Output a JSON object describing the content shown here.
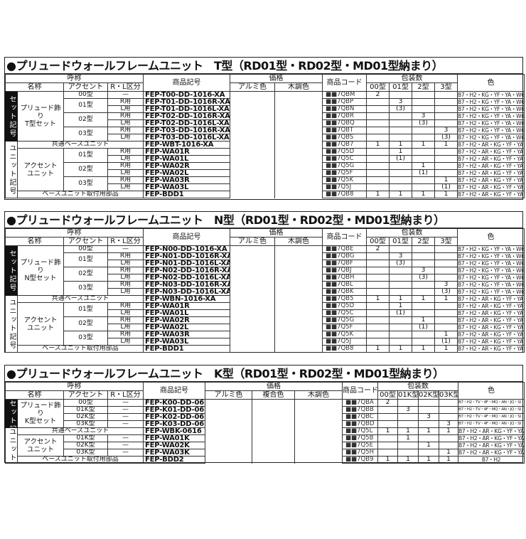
{
  "sections": [
    {
      "title": "●プリュードウォールフレームユニット　T型（RD01型・RD02型・MD01型納まり）",
      "header": {
        "yobi": "呼称",
        "name": "名称",
        "accent": "アクセント",
        "rl": "R・L区分",
        "sku": "商品記号",
        "price": "価格",
        "price_cols": [
          "アルミ色",
          "木調色"
        ],
        "code": "商品コード",
        "pack": "包装数",
        "pack_cols": [
          "00型",
          "01型",
          "2型",
          "3型"
        ],
        "color": "色"
      },
      "groups": [
        {
          "label": "セット記号",
          "dark": true,
          "rows": [
            {
              "name": "プリュード飾り\nT型セット",
              "accent": "00型",
              "rl": "—",
              "sku": "FEP-T00-DD-1016-XA",
              "code": "■■7QBM",
              "pack": [
                "2",
                "",
                "",
                ""
              ],
              "color": "B7・H2・KG・YF・YA・W6"
            },
            {
              "name": "プリュード飾り\nT型セット",
              "accent": "01型",
              "rl": "R用",
              "sku": "FEP-T01-DD-1016R-XA",
              "code": "■■7QBP",
              "pack": [
                "",
                "3",
                "",
                ""
              ],
              "color": "B7・H2・KG・YF・YA・W6"
            },
            {
              "name": "プリュード飾り\nT型セット",
              "accent": "01型",
              "rl": "L用",
              "sku": "FEP-T01-DD-1016L-XA",
              "code": "■■7QBN",
              "pack": [
                "",
                "(3)",
                "",
                ""
              ],
              "color": "B7・H2・KG・YF・YA・W6"
            },
            {
              "name": "プリュード飾り\nT型セット",
              "accent": "02型",
              "rl": "R用",
              "sku": "FEP-T02-DD-1016R-XA",
              "code": "■■7QBR",
              "pack": [
                "",
                "",
                "3",
                ""
              ],
              "color": "B7・H2・KG・YF・YA・W6"
            },
            {
              "name": "プリュード飾り\nT型セット",
              "accent": "02型",
              "rl": "L用",
              "sku": "FEP-T02-DD-1016L-XA",
              "code": "■■7QBQ",
              "pack": [
                "",
                "",
                "(3)",
                ""
              ],
              "color": "B7・H2・KG・YF・YA・W6"
            },
            {
              "name": "プリュード飾り\nT型セット",
              "accent": "03型",
              "rl": "R用",
              "sku": "FEP-T03-DD-1016R-XA",
              "code": "■■7QBT",
              "pack": [
                "",
                "",
                "",
                "3"
              ],
              "color": "B7・H2・KG・YF・YA・W6"
            },
            {
              "name": "プリュード飾り\nT型セット",
              "accent": "03型",
              "rl": "L用",
              "sku": "FEP-T03-DD-1016L-XA",
              "code": "■■7QBS",
              "pack": [
                "",
                "",
                "",
                "(3)"
              ],
              "color": "B7・H2・KG・YF・YA・W6"
            }
          ]
        },
        {
          "label": "ユニット記号",
          "dark": false,
          "rows": [
            {
              "label": "共通ベースユニット",
              "sku": "FEP-WBT-1016-XA",
              "code": "■■7QB7",
              "pack": [
                "1",
                "1",
                "1",
                "1"
              ],
              "color": "B7・H2・AR・KG・YF・YA・W6"
            },
            {
              "name": "アクセント\nユニット",
              "accent": "01型",
              "rl": "R用",
              "sku": "FEP-WA01R",
              "code": "■■7Q5D",
              "pack": [
                "",
                "1",
                "",
                ""
              ],
              "color": "B7・H2・AR・KG・YF・YA・W6"
            },
            {
              "name": "アクセント\nユニット",
              "accent": "01型",
              "rl": "L用",
              "sku": "FEP-WA01L",
              "code": "■■7Q5C",
              "pack": [
                "",
                "(1)",
                "",
                ""
              ],
              "color": "B7・H2・AR・KG・YF・YA・W6"
            },
            {
              "name": "アクセント\nユニット",
              "accent": "02型",
              "rl": "R用",
              "sku": "FEP-WA02R",
              "code": "■■7Q5G",
              "pack": [
                "",
                "",
                "1",
                ""
              ],
              "color": "B7・H2・AR・KG・YF・YA・W6"
            },
            {
              "name": "アクセント\nユニット",
              "accent": "02型",
              "rl": "L用",
              "sku": "FEP-WA02L",
              "code": "■■7Q5F",
              "pack": [
                "",
                "",
                "(1)",
                ""
              ],
              "color": "B7・H2・AR・KG・YF・YA・W6"
            },
            {
              "name": "アクセント\nユニット",
              "accent": "03型",
              "rl": "R用",
              "sku": "FEP-WA03R",
              "code": "■■7Q5K",
              "pack": [
                "",
                "",
                "",
                "1"
              ],
              "color": "B7・H2・AR・KG・YF・YA・W6"
            },
            {
              "name": "アクセント\nユニット",
              "accent": "03型",
              "rl": "L用",
              "sku": "FEP-WA03L",
              "code": "■■7Q5J",
              "pack": [
                "",
                "",
                "",
                "(1)"
              ],
              "color": "B7・H2・AR・KG・YF・YA・W6"
            },
            {
              "label": "ベースユニット取付用部品",
              "sku": "FEP-BDD1",
              "code": "■■7QB8",
              "pack": [
                "1",
                "1",
                "1",
                "1"
              ],
              "color": "B7・H2・AR・KG・YF・YA・W6"
            }
          ]
        }
      ]
    },
    {
      "title": "●プリュードウォールフレームユニット　N型（RD01型・RD02型・MD01型納まり）",
      "header": {
        "yobi": "呼称",
        "name": "名称",
        "accent": "アクセント",
        "rl": "R・L区分",
        "sku": "商品記号",
        "price": "価格",
        "price_cols": [
          "アルミ色",
          "木調色"
        ],
        "code": "商品コード",
        "pack": "包装数",
        "pack_cols": [
          "00型",
          "01型",
          "2型",
          "3型"
        ],
        "color": "色"
      },
      "groups": [
        {
          "label": "セット記号",
          "dark": true,
          "rows": [
            {
              "name": "プリュード飾り\nN型セット",
              "accent": "00型",
              "rl": "—",
              "sku": "FEP-N00-DD-1016-XA",
              "code": "■■7QBE",
              "pack": [
                "2",
                "",
                "",
                ""
              ],
              "color": "B7・H2・KG・YF・YA・W6"
            },
            {
              "name": "プリュード飾り\nN型セット",
              "accent": "01型",
              "rl": "R用",
              "sku": "FEP-N01-DD-1016R-XA",
              "code": "■■7QBG",
              "pack": [
                "",
                "3",
                "",
                ""
              ],
              "color": "B7・H2・KG・YF・YA・W6"
            },
            {
              "name": "プリュード飾り\nN型セット",
              "accent": "01型",
              "rl": "L用",
              "sku": "FEP-N01-DD-1016L-XA",
              "code": "■■7QBF",
              "pack": [
                "",
                "(3)",
                "",
                ""
              ],
              "color": "B7・H2・KG・YF・YA・W6"
            },
            {
              "name": "プリュード飾り\nN型セット",
              "accent": "02型",
              "rl": "R用",
              "sku": "FEP-N02-DD-1016R-XA",
              "code": "■■7QBJ",
              "pack": [
                "",
                "",
                "3",
                ""
              ],
              "color": "B7・H2・KG・YF・YA・W6"
            },
            {
              "name": "プリュード飾り\nN型セット",
              "accent": "02型",
              "rl": "L用",
              "sku": "FEP-N02-DD-1016L-XA",
              "code": "■■7QBH",
              "pack": [
                "",
                "",
                "(3)",
                ""
              ],
              "color": "B7・H2・KG・YF・YA・W6"
            },
            {
              "name": "プリュード飾り\nN型セット",
              "accent": "03型",
              "rl": "R用",
              "sku": "FEP-N03-DD-1016R-XA",
              "code": "■■7QBL",
              "pack": [
                "",
                "",
                "",
                "3"
              ],
              "color": "B7・H2・KG・YF・YA・W6"
            },
            {
              "name": "プリュード飾り\nN型セット",
              "accent": "03型",
              "rl": "L用",
              "sku": "FEP-N03-DD-1016L-XA",
              "code": "■■7QBK",
              "pack": [
                "",
                "",
                "",
                "(3)"
              ],
              "color": "B7・H2・KG・YF・YA・W6"
            }
          ]
        },
        {
          "label": "ユニット記号",
          "dark": false,
          "rows": [
            {
              "label": "共通ベースユニット",
              "sku": "FEP-WBN-1016-XA",
              "code": "■■7QB5",
              "pack": [
                "1",
                "1",
                "1",
                "1"
              ],
              "color": "B7・H2・AR・KG・YF・YA・W6"
            },
            {
              "name": "アクセント\nユニット",
              "accent": "01型",
              "rl": "R用",
              "sku": "FEP-WA01R",
              "code": "■■7Q5D",
              "pack": [
                "",
                "1",
                "",
                ""
              ],
              "color": "B7・H2・AR・KG・YF・YA・W6"
            },
            {
              "name": "アクセント\nユニット",
              "accent": "01型",
              "rl": "L用",
              "sku": "FEP-WA01L",
              "code": "■■7Q5C",
              "pack": [
                "",
                "(1)",
                "",
                ""
              ],
              "color": "B7・H2・AR・KG・YF・YA・W6"
            },
            {
              "name": "アクセント\nユニット",
              "accent": "02型",
              "rl": "R用",
              "sku": "FEP-WA02R",
              "code": "■■7Q5G",
              "pack": [
                "",
                "",
                "1",
                ""
              ],
              "color": "B7・H2・AR・KG・YF・YA・W6"
            },
            {
              "name": "アクセント\nユニット",
              "accent": "02型",
              "rl": "L用",
              "sku": "FEP-WA02L",
              "code": "■■7Q5F",
              "pack": [
                "",
                "",
                "(1)",
                ""
              ],
              "color": "B7・H2・AR・KG・YF・YA・W6"
            },
            {
              "name": "アクセント\nユニット",
              "accent": "03型",
              "rl": "R用",
              "sku": "FEP-WA03R",
              "code": "■■7Q5K",
              "pack": [
                "",
                "",
                "",
                "1"
              ],
              "color": "B7・H2・AR・KG・YF・YA・W6"
            },
            {
              "name": "アクセント\nユニット",
              "accent": "03型",
              "rl": "L用",
              "sku": "FEP-WA03L",
              "code": "■■7Q5J",
              "pack": [
                "",
                "",
                "",
                "(1)"
              ],
              "color": "B7・H2・AR・KG・YF・YA・W6"
            },
            {
              "label": "ベースユニット取付用部品",
              "sku": "FEP-BDD1",
              "code": "■■7QB8",
              "pack": [
                "1",
                "1",
                "1",
                "1"
              ],
              "color": "B7・H2・AR・KG・YF・YA・W6"
            }
          ]
        }
      ]
    },
    {
      "title": "●プリュードウォールフレームユニット　K型（RD01型・RD02型・MD01型納まり）",
      "header": {
        "yobi": "呼称",
        "name": "名称",
        "accent": "アクセント",
        "rl": "R・L区分",
        "sku": "商品記号",
        "price": "価格",
        "price_cols": [
          "アルミ色",
          "複合色",
          "木調色"
        ],
        "code": "商品コード",
        "pack": "包装数",
        "pack_cols": [
          "00型",
          "01K型",
          "02K型",
          "03K型"
        ],
        "color": "色"
      },
      "groups": [
        {
          "label": "セット記号",
          "dark": true,
          "rows": [
            {
              "name": "プリュード飾り\nK型セット",
              "accent": "00型",
              "rl": "—",
              "sku": "FEP-K00-DD-0616",
              "code": "■■7QBA",
              "pack": [
                "2",
                "",
                "",
                ""
              ],
              "color": "B7・H2・TV・4F・MQ・AN・JQ・SI・PV・4D"
            },
            {
              "name": "プリュード飾り\nK型セット",
              "accent": "01K型",
              "rl": "—",
              "sku": "FEP-K01-DD-0616",
              "code": "■■7QBB",
              "pack": [
                "",
                "3",
                "",
                ""
              ],
              "color": "B7・H2・TV・4F・MQ・AN・JQ・SI・PV・4D"
            },
            {
              "name": "プリュード飾り\nK型セット",
              "accent": "02K型",
              "rl": "—",
              "sku": "FEP-K02-DD-0616",
              "code": "■■7QBC",
              "pack": [
                "",
                "",
                "3",
                ""
              ],
              "color": "B7・H2・TV・4F・MQ・AN・JQ・SI・PV・4D"
            },
            {
              "name": "プリュード飾り\nK型セット",
              "accent": "03K型",
              "rl": "—",
              "sku": "FEP-K03-DD-0616",
              "code": "■■7QBD",
              "pack": [
                "",
                "",
                "",
                "3"
              ],
              "color": "B7・H2・TV・4F・MQ・AN・JQ・SI・PV・4D"
            }
          ]
        },
        {
          "label": "ユニット記号",
          "dark": false,
          "rows": [
            {
              "label": "共通ベースユニット",
              "sku": "FEP-WBK-0616",
              "code": "■■7Q5L",
              "pack": [
                "1",
                "1",
                "1",
                "1"
              ],
              "color": "B7・H2・AR・KG・YF・YA・W6"
            },
            {
              "name": "アクセント\nユニット",
              "accent": "01K型",
              "rl": "—",
              "sku": "FEP-WA01K",
              "code": "■■7Q5B",
              "pack": [
                "",
                "1",
                "",
                ""
              ],
              "color": "B7・H2・AR・KG・YF・YA・W6"
            },
            {
              "name": "アクセント\nユニット",
              "accent": "02K型",
              "rl": "—",
              "sku": "FEP-WA02K",
              "code": "■■7Q5E",
              "pack": [
                "",
                "",
                "1",
                ""
              ],
              "color": "B7・H2・AR・KG・YF・YA・W6"
            },
            {
              "name": "アクセント\nユニット",
              "accent": "03K型",
              "rl": "—",
              "sku": "FEP-WA03K",
              "code": "■■7Q5H",
              "pack": [
                "",
                "",
                "",
                "1"
              ],
              "color": "B7・H2・AR・KG・YF・YA・W6"
            },
            {
              "label": "ベースユニット取付用部品",
              "sku": "FEP-BDD2",
              "code": "■■7QB9",
              "pack": [
                "1",
                "1",
                "1",
                "1"
              ],
              "color": "B7・H2"
            }
          ]
        }
      ]
    }
  ]
}
